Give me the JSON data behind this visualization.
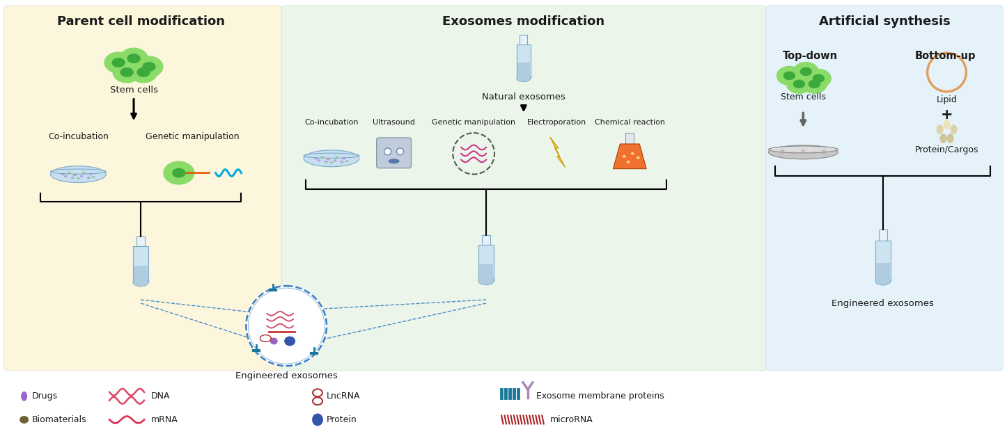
{
  "title_left": "Parent cell modification",
  "title_mid": "Exosomes modification",
  "title_right": "Artificial synthesis",
  "bg_left": "#FBF6DC",
  "bg_mid": "#EBF5E9",
  "bg_right": "#E5F2FA",
  "cell_outer": "#8ADB68",
  "cell_inner": "#3BAA3B",
  "stem_cells_label": "Stem cells",
  "co_incubation_label": "Co-incubation",
  "genetic_manip_label": "Genetic manipulation",
  "natural_exosomes_label": "Natural exosomes",
  "ultrasound_label": "Ultrasound",
  "genetic_manip2_label": "Genetic manipulation",
  "electroporation_label": "Electroporation",
  "chemical_reaction_label": "Chemical reaction",
  "co_incubation2_label": "Co-incubation",
  "top_down_label": "Top-down",
  "bottom_up_label": "Bottom-up",
  "lipid_label": "Lipid",
  "protein_cargos_label": "Protein/Cargos",
  "engineered_exosomes_label": "Engineered exosomes",
  "engineered_exosomes2_label": "Engineered exosomes",
  "legend_row1": [
    "Drugs",
    "DNA",
    "LncRNA",
    "Exosome membrane proteins"
  ],
  "legend_row2": [
    "Biomaterials",
    "mRNA",
    "Protein",
    "microRNA"
  ],
  "text_color": "#1A1A1A",
  "dashed_color": "#4A8CC8",
  "tube_body": "#CDE4F0",
  "tube_edge": "#7AAAC8",
  "tube_neck": "#E8F0F8",
  "tube_liquid": "#B0CCE0"
}
